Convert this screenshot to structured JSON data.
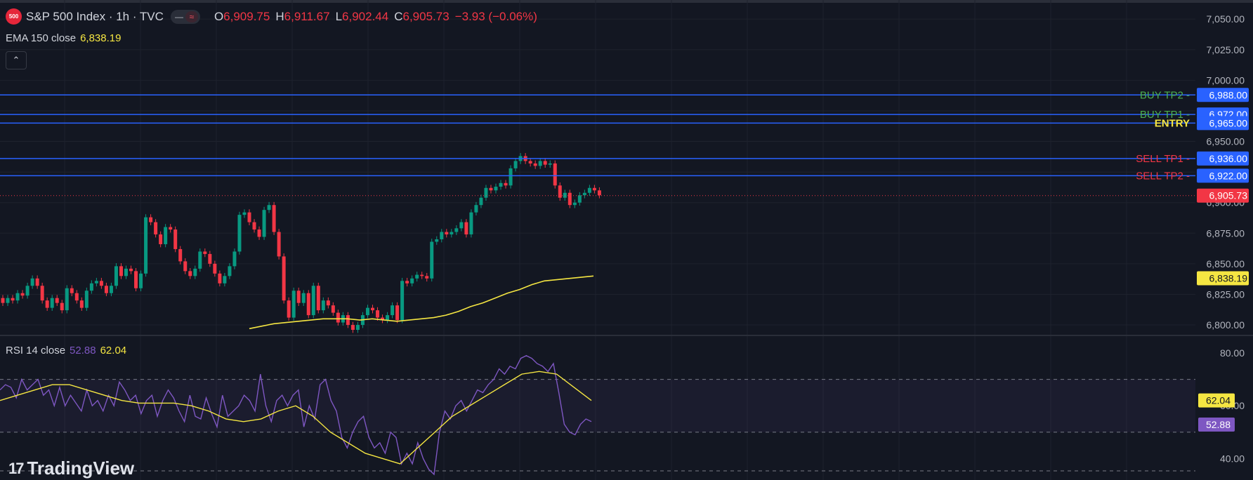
{
  "header": {
    "symbol_badge": "500",
    "title": "S&P 500 Index · 1h · TVC",
    "ohlc": {
      "o_label": "O",
      "o_value": "6,909.75",
      "h_label": "H",
      "h_value": "6,911.67",
      "l_label": "L",
      "l_value": "6,902.44",
      "c_label": "C",
      "c_value": "6,905.73",
      "change": "−3.93 (−0.06%)"
    }
  },
  "ema_legend": {
    "label": "EMA 150 close",
    "value": "6,838.19"
  },
  "rsi_legend": {
    "label": "RSI 14 close",
    "value_rsi": "52.88",
    "value_ma": "62.04"
  },
  "logo": {
    "text": "TradingView"
  },
  "colors": {
    "background": "#131722",
    "up": "#089981",
    "down": "#f23645",
    "ema": "#f5e642",
    "rsi": "#7e57c2",
    "level_line": "#2962ff",
    "buy_label": "#4caf50",
    "sell_label": "#f23645",
    "entry_label": "#f5e642"
  },
  "chart_data": {
    "type": "candlestick",
    "y_axis_labels": [
      "7,050.00",
      "7,025.00",
      "7,000.00",
      "6,975.00",
      "6,950.00",
      "6,925.00",
      "6,900.00",
      "6,875.00",
      "6,850.00",
      "6,825.00",
      "6,800.00"
    ],
    "ylim": [
      6792,
      7061
    ],
    "levels": [
      {
        "label": "BUY TP2",
        "price": 6988.0,
        "price_text": "6,988.00",
        "kind": "buy"
      },
      {
        "label": "BUY TP1",
        "price": 6972.0,
        "price_text": "6,972.00",
        "kind": "buy"
      },
      {
        "label": "ENTRY",
        "price": 6965.0,
        "price_text": "6,965.00",
        "kind": "entry"
      },
      {
        "label": "SELL TP1",
        "price": 6936.0,
        "price_text": "6,936.00",
        "kind": "sell"
      },
      {
        "label": "SELL TP2",
        "price": 6922.0,
        "price_text": "6,922.00",
        "kind": "sell"
      }
    ],
    "last_price": {
      "value": 6905.73,
      "text": "6,905.73"
    },
    "ema_value": {
      "value": 6838.19,
      "text": "6,838.19"
    },
    "closes": [
      6818,
      6822,
      6820,
      6826,
      6824,
      6832,
      6838,
      6832,
      6820,
      6814,
      6822,
      6818,
      6812,
      6830,
      6826,
      6820,
      6814,
      6828,
      6834,
      6836,
      6832,
      6826,
      6832,
      6848,
      6840,
      6846,
      6844,
      6830,
      6842,
      6888,
      6884,
      6874,
      6866,
      6880,
      6878,
      6862,
      6852,
      6844,
      6840,
      6846,
      6860,
      6858,
      6850,
      6842,
      6834,
      6840,
      6848,
      6860,
      6890,
      6892,
      6884,
      6878,
      6872,
      6894,
      6898,
      6876,
      6856,
      6820,
      6806,
      6828,
      6818,
      6826,
      6808,
      6832,
      6812,
      6820,
      6816,
      6810,
      6802,
      6808,
      6800,
      6796,
      6800,
      6808,
      6814,
      6812,
      6806,
      6804,
      6808,
      6816,
      6804,
      6836,
      6834,
      6838,
      6841,
      6840,
      6838,
      6868,
      6870,
      6876,
      6874,
      6876,
      6879,
      6884,
      6874,
      6892,
      6898,
      6904,
      6912,
      6910,
      6913,
      6916,
      6914,
      6928,
      6934,
      6938,
      6934,
      6932,
      6930,
      6934,
      6931,
      6932,
      6914,
      6904,
      6908,
      6898,
      6900,
      6906,
      6908,
      6912,
      6910,
      6906
    ],
    "ema": [
      6797,
      6799,
      6801,
      6802,
      6803,
      6804,
      6805,
      6805,
      6805,
      6804,
      6805,
      6804,
      6803,
      6804,
      6805,
      6806,
      6808,
      6811,
      6815,
      6818,
      6822,
      6826,
      6829,
      6833,
      6836,
      6837,
      6838,
      6839,
      6840
    ],
    "rsi_axis_labels": [
      "80.00",
      "60.00",
      "40.00"
    ],
    "rsi_ylim": [
      34,
      84
    ],
    "rsi_band": [
      70,
      50
    ],
    "rsi_last": {
      "value": 52.88,
      "text": "52.88"
    },
    "rsi_ma_last": {
      "value": 62.04,
      "text": "62.04"
    },
    "rsi": [
      66,
      68,
      67,
      63,
      70,
      66,
      68,
      70,
      64,
      66,
      60,
      67,
      60,
      64,
      61,
      58,
      66,
      60,
      62,
      58,
      64,
      60,
      69,
      66,
      62,
      64,
      57,
      62,
      64,
      56,
      62,
      66,
      63,
      58,
      54,
      64,
      56,
      55,
      63,
      57,
      52,
      64,
      56,
      58,
      60,
      64,
      62,
      58,
      72,
      60,
      54,
      62,
      64,
      60,
      64,
      66,
      52,
      60,
      55,
      68,
      70,
      62,
      58,
      48,
      44,
      50,
      54,
      56,
      48,
      44,
      46,
      42,
      50,
      48,
      38,
      42,
      38,
      46,
      40,
      36,
      34,
      50,
      58,
      55,
      60,
      62,
      58,
      62,
      66,
      65,
      68,
      70,
      74,
      72,
      75,
      74,
      78,
      79,
      78,
      76,
      75,
      73,
      76,
      65,
      53,
      50,
      49,
      53,
      55,
      54
    ],
    "rsi_ma": [
      62,
      64,
      66,
      68,
      68,
      66,
      64,
      62,
      61,
      61,
      61,
      60,
      58,
      55,
      54,
      55,
      58,
      60,
      56,
      50,
      46,
      42,
      40,
      38,
      44,
      50,
      56,
      60,
      64,
      68,
      72,
      73,
      72,
      67,
      62
    ]
  }
}
